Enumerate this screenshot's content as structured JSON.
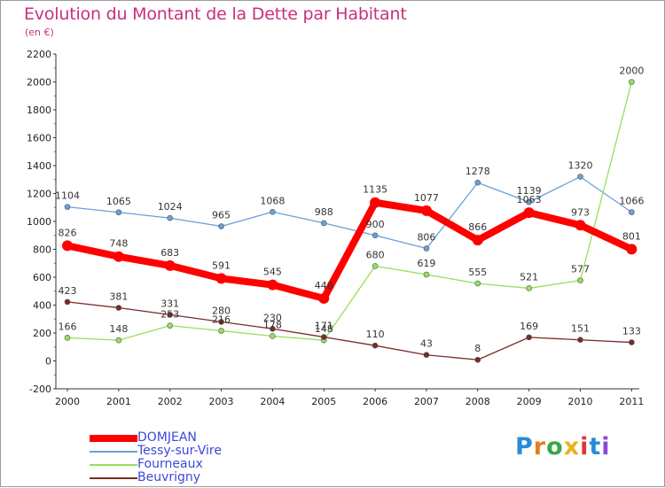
{
  "title": "Evolution du Montant de la Dette par Habitant",
  "subtitle": "(en €)",
  "logo_text": "Proxiti",
  "chart_data": {
    "type": "line",
    "x": [
      "2000",
      "2001",
      "2002",
      "2003",
      "2004",
      "2005",
      "2006",
      "2007",
      "2008",
      "2009",
      "2010",
      "2011"
    ],
    "ylim": [
      -200,
      2200
    ],
    "yticks": [
      -200,
      0,
      200,
      400,
      600,
      800,
      1000,
      1200,
      1400,
      1600,
      1800,
      2000,
      2200
    ],
    "grid": false,
    "legend_position": "bottom-left",
    "series": [
      {
        "name": "DOMJEAN",
        "color": "#ff0000",
        "values": [
          826,
          748,
          683,
          591,
          545,
          448,
          1135,
          1077,
          866,
          1063,
          973,
          801
        ],
        "labels": [
          "826",
          "748",
          "683",
          "591",
          "545",
          "448",
          "1135",
          "1077",
          "866",
          "1063",
          "973",
          "801"
        ]
      },
      {
        "name": "Tessy-sur-Vire",
        "color": "#6aa0d8",
        "values": [
          1104,
          1065,
          1024,
          965,
          1068,
          988,
          900,
          806,
          1278,
          1139,
          1320,
          1066
        ],
        "labels": [
          "1104",
          "1065",
          "1024",
          "965",
          "1068",
          "988",
          "900",
          "806",
          "1278",
          "1139",
          "1320",
          "1066"
        ]
      },
      {
        "name": "Fourneaux",
        "color": "#96e05a",
        "values": [
          166,
          148,
          253,
          216,
          178,
          148,
          680,
          619,
          555,
          521,
          577,
          2000
        ],
        "labels": [
          "166",
          "148",
          "253",
          "216",
          "178",
          "148",
          "680",
          "619",
          "555",
          "521",
          "577",
          "2000"
        ]
      },
      {
        "name": "Beuvrigny",
        "color": "#7a2a2a",
        "values": [
          423,
          381,
          331,
          280,
          230,
          171,
          110,
          43,
          8,
          169,
          151,
          133
        ],
        "labels": [
          "423",
          "381",
          "331",
          "280",
          "230",
          "171",
          "110",
          "43",
          "8",
          "169",
          "151",
          "133"
        ]
      }
    ]
  }
}
